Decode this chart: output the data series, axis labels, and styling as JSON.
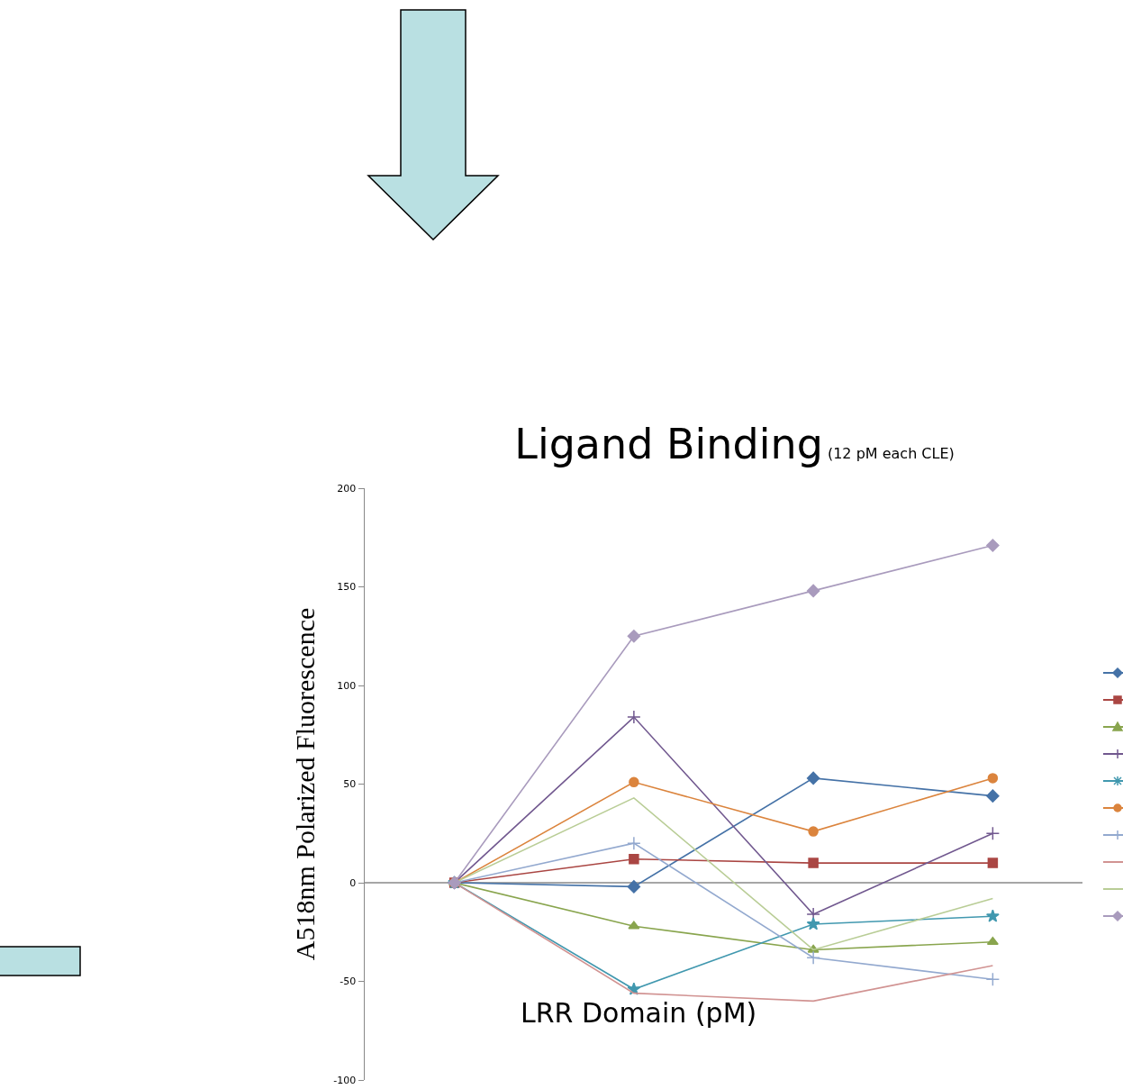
{
  "chart_data": {
    "type": "line",
    "title": "Ligand Binding",
    "subtitle": "(12 pM each CLE)",
    "xlabel": "LRR Domain (pM)",
    "ylabel": "A518nm Polarized Fluorescence",
    "categories": [
      null,
      null,
      null,
      null
    ],
    "ylim": [
      -100,
      200
    ],
    "yticks": [
      -100,
      -50,
      0,
      50,
      100,
      150,
      200
    ],
    "grid": false,
    "ref_lines": [
      {
        "axis": "y",
        "value": 0,
        "color": "#888888"
      }
    ],
    "series": [
      {
        "color": "#4572a7",
        "marker": "diamond",
        "values": [
          0,
          -2,
          53,
          44
        ]
      },
      {
        "color": "#aa4643",
        "marker": "square",
        "values": [
          0,
          12,
          10,
          10
        ]
      },
      {
        "color": "#89a54e",
        "marker": "triangle",
        "values": [
          0,
          -22,
          -34,
          -30
        ]
      },
      {
        "color": "#71588f",
        "marker": "cross",
        "values": [
          0,
          84,
          -16,
          25
        ]
      },
      {
        "color": "#4198af",
        "marker": "star",
        "values": [
          0,
          -54,
          -21,
          -17
        ]
      },
      {
        "color": "#db843d",
        "marker": "circle",
        "values": [
          0,
          51,
          26,
          53
        ]
      },
      {
        "color": "#93a9cf",
        "marker": "cross",
        "values": [
          0,
          20,
          -38,
          -49
        ]
      },
      {
        "color": "#d19392",
        "marker": "none",
        "values": [
          0,
          -56,
          -60,
          -42
        ]
      },
      {
        "color": "#b9cd96",
        "marker": "none",
        "values": [
          0,
          43,
          -34,
          -8
        ]
      },
      {
        "color": "#a99bbd",
        "marker": "diamond",
        "values": [
          0,
          125,
          148,
          171
        ]
      }
    ]
  }
}
